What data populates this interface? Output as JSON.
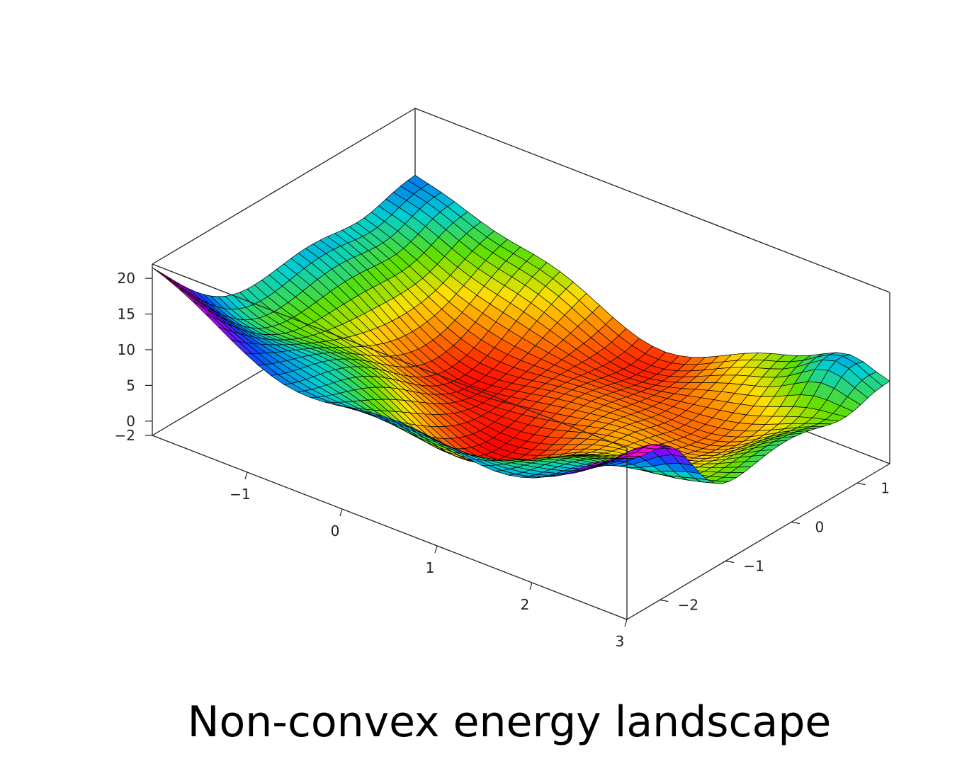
{
  "caption": "Non-convex energy landscape",
  "chart_data": {
    "type": "surface3d",
    "title": "",
    "x_ticks": [
      "−1",
      "0",
      "1",
      "2",
      "3"
    ],
    "y_ticks": [
      "−2",
      "−1",
      "0",
      "1"
    ],
    "z_ticks": [
      "−2",
      "0",
      "5",
      "10",
      "15",
      "20"
    ],
    "x_range": [
      -2,
      3
    ],
    "y_range": [
      -2.5,
      1.5
    ],
    "z_range": [
      -2,
      22
    ],
    "colormap": [
      "#ff0000",
      "#ff7a00",
      "#ffe000",
      "#60e000",
      "#00d0d0",
      "#0050ff",
      "#9000ff",
      "#ff00ff",
      "#ff0000"
    ],
    "mesh_color": "#000000",
    "box_color": "#222222"
  }
}
